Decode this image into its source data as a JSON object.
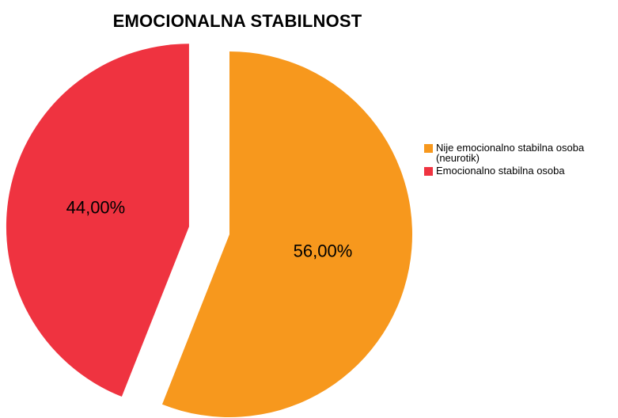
{
  "chart_data": {
    "type": "pie",
    "title": "EMOCIONALNA STABILNOST",
    "slices": [
      {
        "label": "Nije emocionalno stabilna osoba (neurotik)",
        "value": 56.0,
        "display": "56,00%",
        "color": "#F7981D",
        "exploded": false
      },
      {
        "label": "Emocionalno stabilna osoba",
        "value": 44.0,
        "display": "44,00%",
        "color": "#EF3340",
        "exploded": true
      }
    ],
    "legend_position": "right",
    "start_position": "12 o'clock",
    "direction": "clockwise"
  }
}
